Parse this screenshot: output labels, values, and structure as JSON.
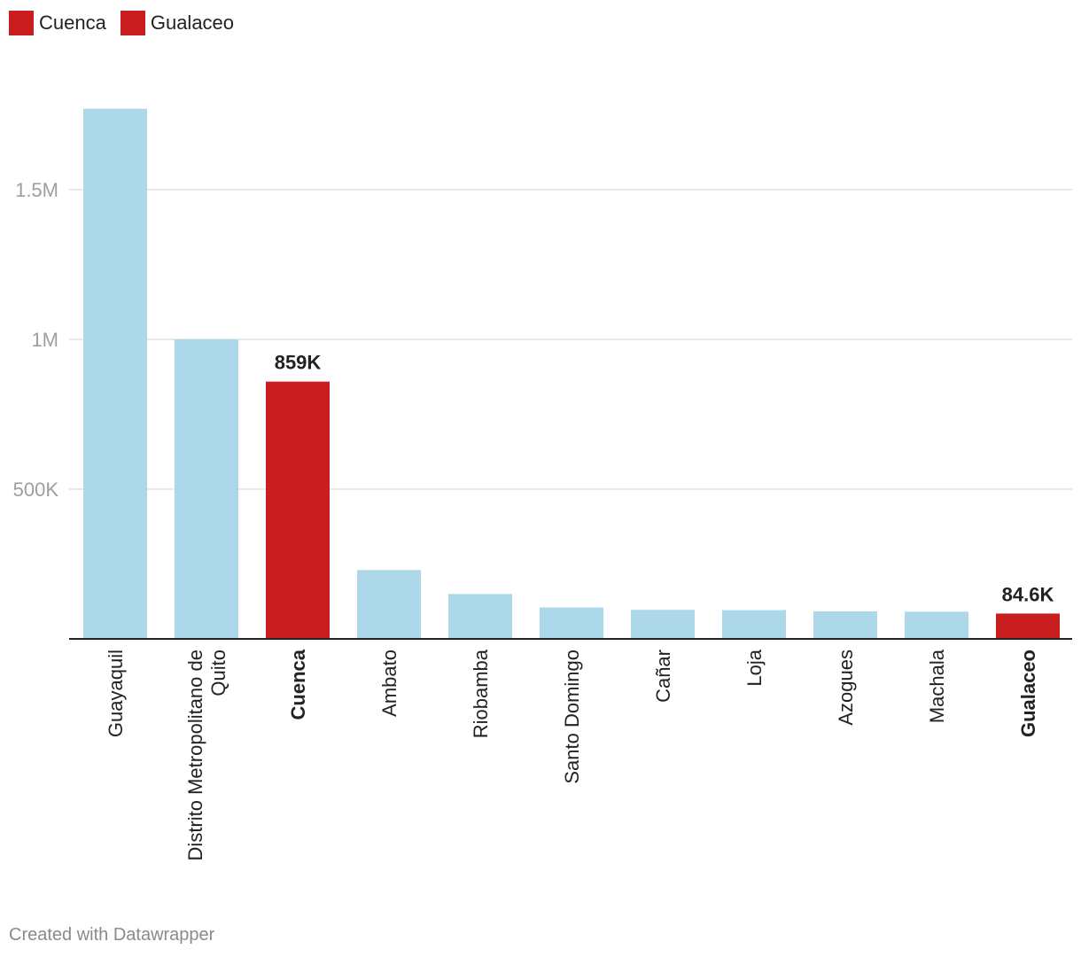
{
  "legend": [
    {
      "label": "Cuenca",
      "color": "#c91d1f"
    },
    {
      "label": "Gualaceo",
      "color": "#c91d1f"
    }
  ],
  "footer": "Created with Datawrapper",
  "colors": {
    "base": "#add8e9",
    "highlight": "#c91d1f",
    "grid": "#e0e0e0",
    "axis": "#222222",
    "tick_text": "#9e9e9e"
  },
  "chart_data": {
    "type": "bar",
    "title": "",
    "xlabel": "",
    "ylabel": "",
    "ylim": [
      0,
      1800000
    ],
    "yticks": [
      {
        "value": 500000,
        "label": "500K"
      },
      {
        "value": 1000000,
        "label": "1M"
      },
      {
        "value": 1500000,
        "label": "1.5M"
      }
    ],
    "categories": [
      {
        "name": "Guayaquil",
        "lines": [
          "Guayaquil"
        ],
        "value": 1770000,
        "highlight": false
      },
      {
        "name": "Distrito Metropolitano de Quito",
        "lines": [
          "Distrito Metropolitano de",
          "Quito"
        ],
        "value": 1000000,
        "highlight": false
      },
      {
        "name": "Cuenca",
        "lines": [
          "Cuenca"
        ],
        "value": 859000,
        "highlight": true,
        "label": "859K"
      },
      {
        "name": "Ambato",
        "lines": [
          "Ambato"
        ],
        "value": 230000,
        "highlight": false
      },
      {
        "name": "Riobamba",
        "lines": [
          "Riobamba"
        ],
        "value": 150000,
        "highlight": false
      },
      {
        "name": "Santo Domingo",
        "lines": [
          "Santo Domingo"
        ],
        "value": 105000,
        "highlight": false
      },
      {
        "name": "Cañar",
        "lines": [
          "Cañar"
        ],
        "value": 97000,
        "highlight": false
      },
      {
        "name": "Loja",
        "lines": [
          "Loja"
        ],
        "value": 96000,
        "highlight": false
      },
      {
        "name": "Azogues",
        "lines": [
          "Azogues"
        ],
        "value": 92000,
        "highlight": false
      },
      {
        "name": "Machala",
        "lines": [
          "Machala"
        ],
        "value": 91000,
        "highlight": false
      },
      {
        "name": "Gualaceo",
        "lines": [
          "Gualaceo"
        ],
        "value": 84600,
        "highlight": true,
        "label": "84.6K"
      }
    ]
  }
}
